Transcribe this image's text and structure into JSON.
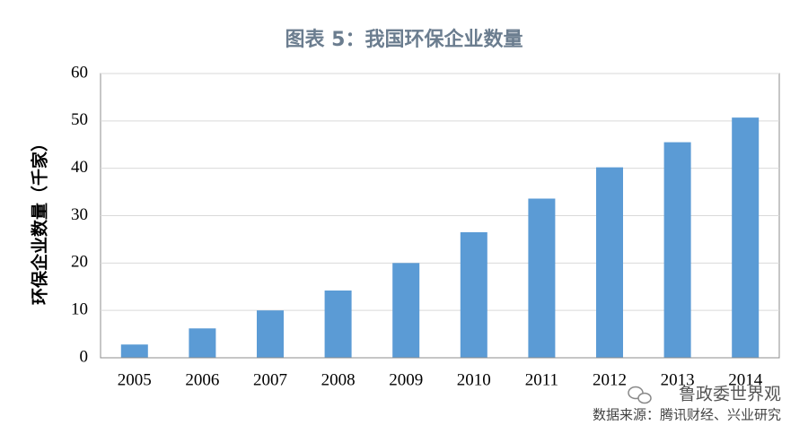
{
  "chart_data": {
    "type": "bar",
    "title": "图表 5：我国环保企业数量",
    "y_label": "环保企业数量（千家）",
    "categories": [
      "2005",
      "2006",
      "2007",
      "2008",
      "2009",
      "2010",
      "2011",
      "2012",
      "2013",
      "2014"
    ],
    "values": [
      2.8,
      6.2,
      10,
      14.2,
      20,
      26.5,
      33.6,
      40.2,
      45.5,
      50.7
    ],
    "color": "#5b9bd5",
    "ylim": [
      0,
      60
    ],
    "yticks": [
      0,
      10,
      20,
      30,
      40,
      50,
      60
    ],
    "grid": true,
    "watermark": "鲁政委世界观",
    "source": "数据来源：腾讯财经、兴业研究"
  }
}
